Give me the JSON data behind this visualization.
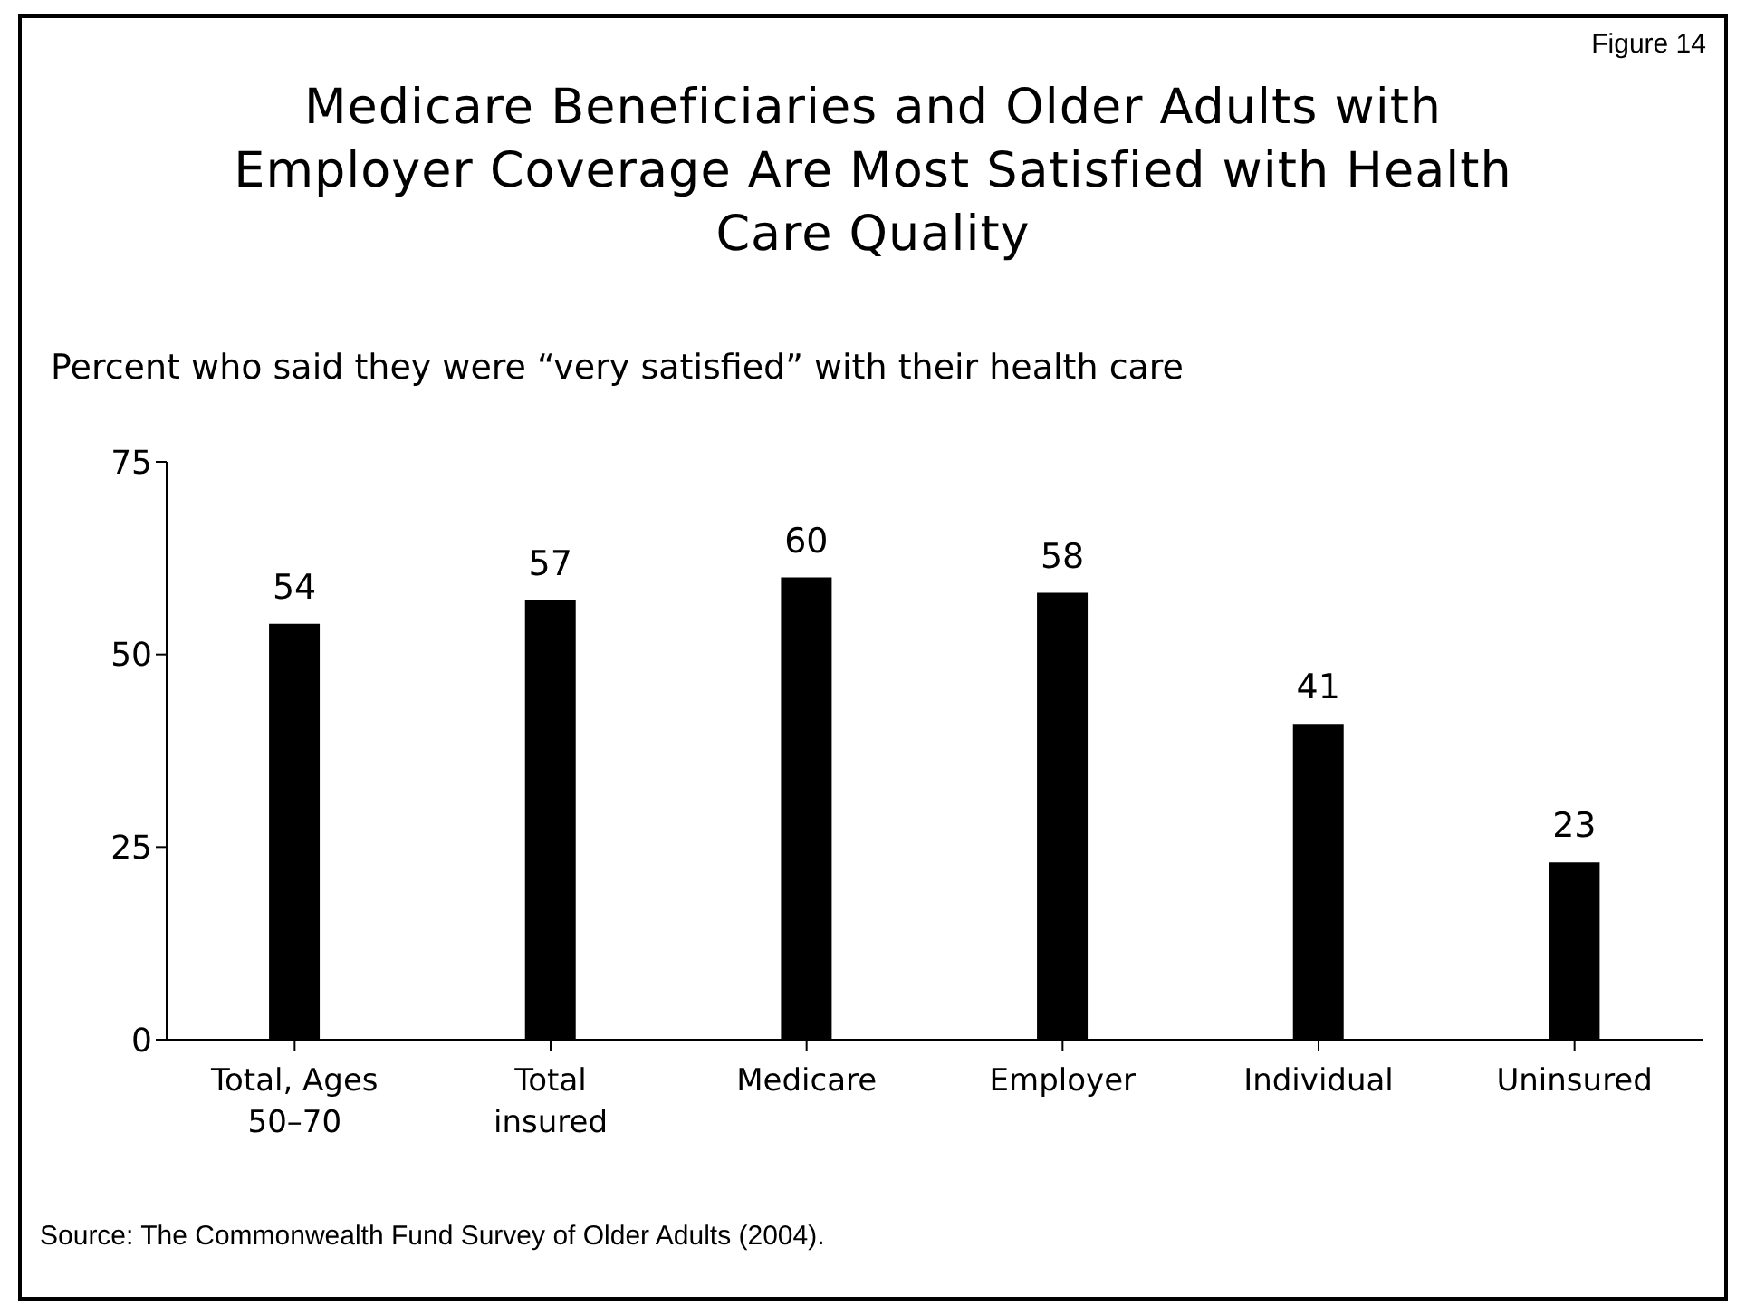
{
  "chart_data": {
    "type": "bar",
    "title": "Medicare Beneficiaries and Older Adults with Employer Coverage Are Most Satisfied with Health Care Quality",
    "subtitle": "Percent who said they were “very satisfied” with their health care",
    "categories": [
      "Total, Ages 50–70",
      "Total insured",
      "Medicare",
      "Employer",
      "Individual",
      "Uninsured"
    ],
    "values": [
      54,
      57,
      60,
      58,
      41,
      23
    ],
    "color": "#000000",
    "ylim": [
      0,
      75
    ],
    "yticks": [
      0,
      25,
      50,
      75
    ],
    "grid": false,
    "data_labels": true,
    "annotations": [
      "Figure 14",
      "Source: The Commonwealth Fund Survey of Older Adults (2004)."
    ]
  }
}
